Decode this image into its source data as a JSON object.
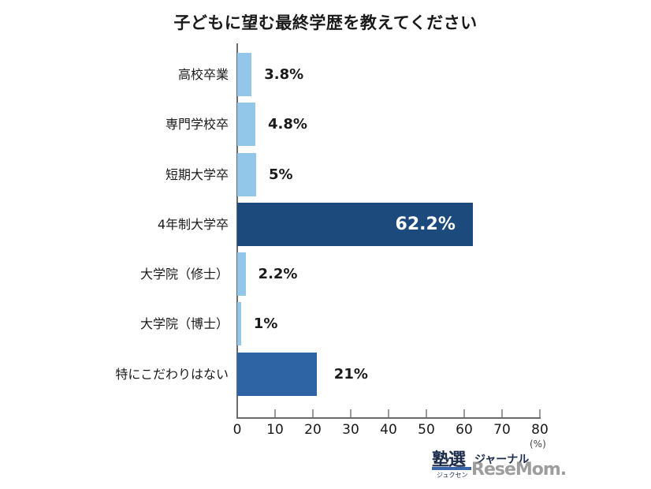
{
  "title": "子どもに望む最終学歴を教えてください",
  "colors": {
    "light_bar": "#92c7ea",
    "highlight_bar": "#1c4a7c",
    "other_bar": "#2e63a4"
  },
  "axis": {
    "ticks": [
      "0",
      "10",
      "20",
      "30",
      "40",
      "50",
      "60",
      "70",
      "80"
    ],
    "unit": "(%)"
  },
  "rows": [
    {
      "label": "高校卒業",
      "value_label": "3.8%"
    },
    {
      "label": "専門学校卒",
      "value_label": "4.8%"
    },
    {
      "label": "短期大学卒",
      "value_label": "5%"
    },
    {
      "label": "4年制大学卒",
      "value_label": "62.2%"
    },
    {
      "label": "大学院（修士）",
      "value_label": "2.2%"
    },
    {
      "label": "大学院（博士）",
      "value_label": "1%"
    },
    {
      "label": "特にこだわりはない",
      "value_label": "21%"
    }
  ],
  "logo": {
    "juku": "塾選",
    "journal": "ジャーナル",
    "kana": "ジュクセン",
    "resemom": "ReseMom."
  },
  "chart_data": {
    "type": "bar",
    "orientation": "horizontal",
    "title": "子どもに望む最終学歴を教えてください",
    "categories": [
      "高校卒業",
      "専門学校卒",
      "短期大学卒",
      "4年制大学卒",
      "大学院（修士）",
      "大学院（博士）",
      "特にこだわりはない"
    ],
    "values": [
      3.8,
      4.8,
      5,
      62.2,
      2.2,
      1,
      21
    ],
    "xlabel": "(%)",
    "ylabel": "",
    "xlim": [
      0,
      80
    ],
    "xticks": [
      0,
      10,
      20,
      30,
      40,
      50,
      60,
      70,
      80
    ],
    "grid": false,
    "legend": null,
    "data_labels": [
      "3.8%",
      "4.8%",
      "5%",
      "62.2%",
      "2.2%",
      "1%",
      "21%"
    ]
  }
}
